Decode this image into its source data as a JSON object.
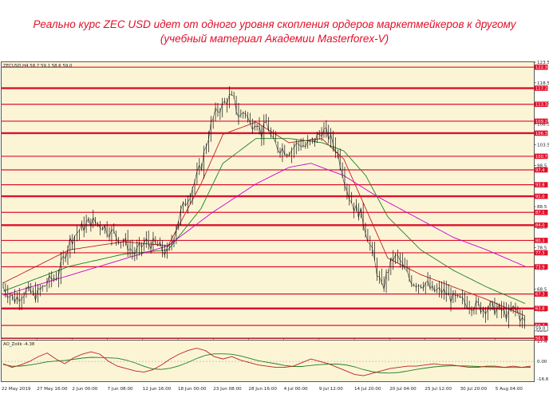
{
  "title": {
    "line1": "Реально курс ZEC USD идет от одного уровня скопления ордеров маркетмейкеров к другому",
    "line2": "(учебный материал Академии Masterforex-V)"
  },
  "chart_data": {
    "type": "candlestick",
    "symbol_header": "ZECUSD,H4  58.7 59.1 58.6 59.0",
    "ylim": [
      56.6,
      123.5
    ],
    "y_ticks": [
      123.5,
      118.5,
      113.5,
      108.5,
      103.5,
      98.5,
      93.5,
      88.5,
      83.5,
      78.5,
      73.5,
      68.5,
      63.5,
      58.5
    ],
    "x_labels": [
      "22 May 2019",
      "27 May 16:00",
      "2 Jun 00:00",
      "7 Jun 08:00",
      "12 Jun 16:00",
      "18 Jun 00:00",
      "23 Jun 08:00",
      "28 Jun 16:00",
      "4 Jul 00:00",
      "9 Jul 12:00",
      "14 Jul 20:00",
      "20 Jul 04:00",
      "25 Jul 12:00",
      "30 Jul 20:00",
      "5 Aug 04:00"
    ],
    "price_path": [
      [
        0,
        69
      ],
      [
        2,
        66
      ],
      [
        4,
        68
      ],
      [
        6,
        67
      ],
      [
        8,
        70
      ],
      [
        10,
        72
      ],
      [
        12,
        80
      ],
      [
        14,
        83
      ],
      [
        16,
        85
      ],
      [
        18,
        84
      ],
      [
        20,
        82
      ],
      [
        22,
        80
      ],
      [
        24,
        77
      ],
      [
        26,
        80
      ],
      [
        28,
        79
      ],
      [
        30,
        77
      ],
      [
        32,
        86
      ],
      [
        34,
        92
      ],
      [
        36,
        98
      ],
      [
        37,
        104
      ],
      [
        38,
        109
      ],
      [
        39,
        112
      ],
      [
        40,
        113
      ],
      [
        41,
        115
      ],
      [
        42,
        114
      ],
      [
        43,
        110
      ],
      [
        44,
        112
      ],
      [
        45,
        108
      ],
      [
        46,
        110
      ],
      [
        47,
        106
      ],
      [
        48,
        109
      ],
      [
        49,
        104
      ],
      [
        50,
        103
      ],
      [
        52,
        102
      ],
      [
        54,
        104
      ],
      [
        55,
        103
      ],
      [
        57,
        105
      ],
      [
        58,
        107
      ],
      [
        59,
        106
      ],
      [
        60,
        104
      ],
      [
        61,
        101
      ],
      [
        62,
        96
      ],
      [
        63,
        91
      ],
      [
        64,
        88
      ],
      [
        65,
        87
      ],
      [
        66,
        83
      ],
      [
        67,
        78
      ],
      [
        68,
        73
      ],
      [
        69,
        68
      ],
      [
        70,
        73
      ],
      [
        71,
        76
      ],
      [
        72,
        76
      ],
      [
        73,
        73
      ],
      [
        74,
        71
      ],
      [
        75,
        70
      ],
      [
        77,
        70
      ],
      [
        78,
        68
      ],
      [
        80,
        68
      ],
      [
        82,
        66
      ],
      [
        85,
        65
      ],
      [
        87,
        64
      ],
      [
        89,
        64
      ],
      [
        91,
        63
      ],
      [
        92,
        62
      ],
      [
        93,
        64
      ],
      [
        94,
        62
      ],
      [
        95,
        60
      ]
    ],
    "moving_averages": [
      {
        "color": "#c02020",
        "path": [
          [
            0,
            70
          ],
          [
            12,
            78
          ],
          [
            22,
            80
          ],
          [
            30,
            79
          ],
          [
            36,
            94
          ],
          [
            40,
            106
          ],
          [
            46,
            109
          ],
          [
            52,
            104
          ],
          [
            58,
            105
          ],
          [
            62,
            100
          ],
          [
            66,
            88
          ],
          [
            70,
            76
          ],
          [
            76,
            72
          ],
          [
            82,
            69
          ],
          [
            88,
            66
          ],
          [
            95,
            62
          ]
        ]
      },
      {
        "color": "#208020",
        "path": [
          [
            0,
            68
          ],
          [
            12,
            74
          ],
          [
            22,
            77
          ],
          [
            30,
            78
          ],
          [
            36,
            88
          ],
          [
            40,
            99
          ],
          [
            46,
            105
          ],
          [
            52,
            105
          ],
          [
            58,
            104
          ],
          [
            62,
            102
          ],
          [
            66,
            96
          ],
          [
            70,
            86
          ],
          [
            76,
            78
          ],
          [
            82,
            73
          ],
          [
            88,
            69
          ],
          [
            95,
            65
          ]
        ]
      },
      {
        "color": "#cc00cc",
        "path": [
          [
            0,
            67
          ],
          [
            10,
            71
          ],
          [
            20,
            75
          ],
          [
            30,
            79
          ],
          [
            38,
            87
          ],
          [
            46,
            94
          ],
          [
            52,
            98
          ],
          [
            56,
            99
          ],
          [
            58,
            98
          ],
          [
            62,
            96
          ],
          [
            68,
            91
          ],
          [
            75,
            86
          ],
          [
            82,
            81
          ],
          [
            88,
            78
          ],
          [
            95,
            74
          ]
        ]
      }
    ],
    "levels": [
      {
        "value": 122.3,
        "label": "122.3",
        "width": 1.2
      },
      {
        "value": 117.2,
        "label": "117.2",
        "width": 2.4
      },
      {
        "value": 113.3,
        "label": "113.3",
        "width": 1.2
      },
      {
        "value": 109.2,
        "label": "109.2",
        "width": 1.2
      },
      {
        "value": 106.3,
        "label": "106.3",
        "width": 2.4
      },
      {
        "value": 100.7,
        "label": "100.7",
        "width": 1.2
      },
      {
        "value": 97.4,
        "label": "97.4",
        "width": 1.2
      },
      {
        "value": 93.8,
        "label": "93.8",
        "width": 1.2
      },
      {
        "value": 91.0,
        "label": "91.0",
        "width": 2.4
      },
      {
        "value": 87.1,
        "label": "87.1",
        "width": 1.2
      },
      {
        "value": 84.0,
        "label": "84.0",
        "width": 2.4
      },
      {
        "value": 80.3,
        "label": "80.3",
        "width": 1.2
      },
      {
        "value": 77.3,
        "label": "77.3",
        "width": 1.2
      },
      {
        "value": 73.9,
        "label": "73.9",
        "width": 1.2
      },
      {
        "value": 67.3,
        "label": "67.3",
        "width": 1.2
      },
      {
        "value": 63.8,
        "label": "63.8",
        "width": 2.4
      },
      {
        "value": 59.7,
        "label": "59.7",
        "width": 1.2
      },
      {
        "value": 56.6,
        "label": "56.6",
        "width": 1.2
      }
    ],
    "current_price": {
      "value": 59.0,
      "label": "59.0"
    },
    "oscillator": {
      "header": "AO_Zolik -4.38",
      "ylim": [
        -16.61,
        17.4
      ],
      "y_ticks": [
        "17.4",
        "0.00",
        "-16.61"
      ],
      "values": [
        -2,
        -5,
        -3,
        0,
        4,
        7,
        2,
        -2,
        3,
        6,
        8,
        6,
        0,
        -4,
        -6,
        -8,
        -9,
        -7,
        -3,
        2,
        6,
        9,
        11,
        9,
        4,
        2,
        4,
        1,
        -1,
        -3,
        -4,
        -5,
        -5,
        -4,
        -1,
        2,
        0,
        -2,
        -5,
        -8,
        -11,
        -12,
        -10,
        -8,
        -6,
        -5,
        -4,
        -4,
        -3,
        -2,
        -3,
        -3,
        -4,
        -5,
        -5,
        -4,
        -4,
        -5,
        -4,
        -5,
        -4
      ]
    }
  }
}
